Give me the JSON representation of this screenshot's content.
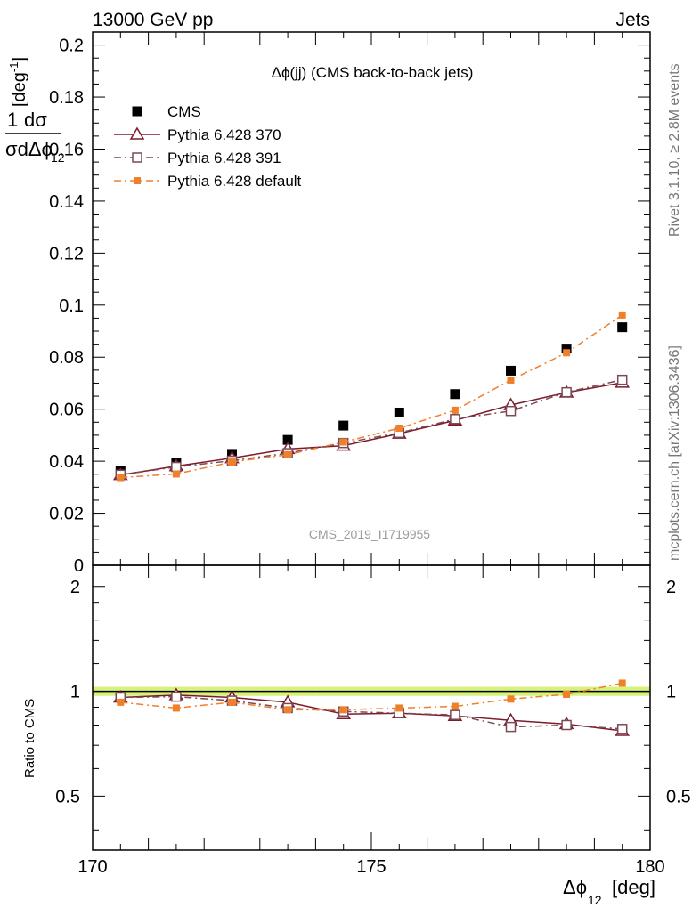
{
  "header": {
    "energy_label": "13000 GeV pp",
    "process_label": "Jets"
  },
  "side_text": {
    "rivet": "Rivet 3.1.10, ≥ 2.8M events",
    "mcplots": "mcplots.cern.ch [arXiv:1306.3436]"
  },
  "watermark": "CMS_2019_I1719955",
  "chart_data": [
    {
      "type": "scatter",
      "panel": "main",
      "title": "Δϕ(jj) (CMS back-to-back jets)",
      "xlabel": "Δϕ",
      "xlabel_sub": "12",
      "xlabel_unit": "[deg]",
      "ylabel": "1 dσ / σ dΔϕ [deg⁻¹]",
      "ylim": [
        0,
        0.205
      ],
      "xlim": [
        170,
        180
      ],
      "yticks": [
        "0",
        "0.02",
        "0.04",
        "0.06",
        "0.08",
        "0.1",
        "0.12",
        "0.14",
        "0.16",
        "0.18",
        "0.2"
      ],
      "ytick_values": [
        0,
        0.02,
        0.04,
        0.06,
        0.08,
        0.1,
        0.12,
        0.14,
        0.16,
        0.18,
        0.2
      ],
      "legend_position": "top-left",
      "x": [
        170.5,
        171.5,
        172.5,
        173.5,
        174.5,
        175.5,
        176.5,
        177.5,
        178.5,
        179.5
      ],
      "series": [
        {
          "name": "CMS",
          "color": "#000000",
          "marker": "filled-square",
          "line": "none",
          "values": [
            0.0362,
            0.0392,
            0.0428,
            0.0482,
            0.0537,
            0.0587,
            0.0658,
            0.0748,
            0.0833,
            0.0915
          ]
        },
        {
          "name": "Pythia 6.428 370",
          "color": "#7d1a2b",
          "marker": "open-triangle",
          "line": "solid",
          "values": [
            0.0347,
            0.0381,
            0.0412,
            0.0447,
            0.046,
            0.0506,
            0.0557,
            0.0616,
            0.0664,
            0.0702
          ]
        },
        {
          "name": "Pythia 6.428 391",
          "color": "#7a4a55",
          "marker": "open-square",
          "line": "dash-dot",
          "values": [
            0.0348,
            0.0378,
            0.0402,
            0.0431,
            0.047,
            0.0509,
            0.0562,
            0.0593,
            0.0665,
            0.0713
          ]
        },
        {
          "name": "Pythia 6.428 default",
          "color": "#f07f2a",
          "marker": "small-filled-square",
          "line": "dash-dot",
          "values": [
            0.0337,
            0.0351,
            0.0397,
            0.0425,
            0.0474,
            0.0527,
            0.0596,
            0.0712,
            0.0817,
            0.0962
          ]
        }
      ]
    },
    {
      "type": "line",
      "panel": "ratio",
      "ylabel": "Ratio to CMS",
      "scale": "log",
      "ylim": [
        0.35,
        2.3
      ],
      "yticks": [
        "0.5",
        "1",
        "2"
      ],
      "ytick_values": [
        0.5,
        1,
        2
      ],
      "xticks": [
        "170",
        "175",
        "180"
      ],
      "xtick_values": [
        170,
        175,
        180
      ],
      "band_color": "#d6f27a",
      "x": [
        170.5,
        171.5,
        172.5,
        173.5,
        174.5,
        175.5,
        176.5,
        177.5,
        178.5,
        179.5
      ],
      "band_halfwidth": [
        0.03,
        0.03,
        0.03,
        0.03,
        0.03,
        0.03,
        0.03,
        0.03,
        0.03,
        0.03
      ],
      "series": [
        {
          "name": "Pythia 6.428 370",
          "values": [
            0.96,
            0.975,
            0.96,
            0.93,
            0.86,
            0.865,
            0.85,
            0.825,
            0.805,
            0.77
          ]
        },
        {
          "name": "Pythia 6.428 391",
          "values": [
            0.96,
            0.965,
            0.94,
            0.895,
            0.875,
            0.865,
            0.855,
            0.79,
            0.8,
            0.78
          ]
        },
        {
          "name": "Pythia 6.428 default",
          "values": [
            0.93,
            0.895,
            0.93,
            0.885,
            0.885,
            0.895,
            0.905,
            0.95,
            0.98,
            1.055
          ]
        }
      ]
    }
  ]
}
